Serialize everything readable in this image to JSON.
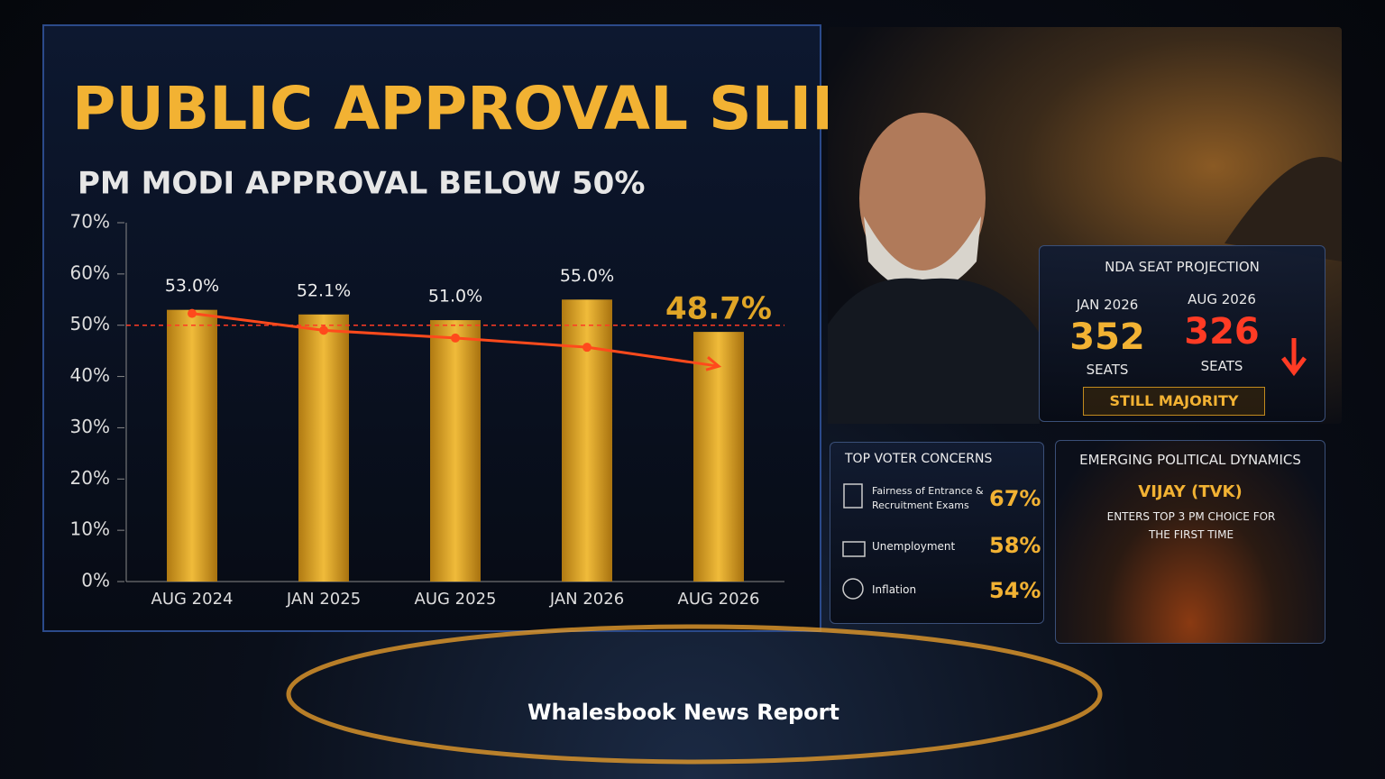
{
  "chart_data": {
    "type": "bar",
    "title": "PUBLIC APPROVAL SLIPS",
    "subtitle": "PM MODI APPROVAL BELOW 50%",
    "categories": [
      "AUG 2024",
      "JAN 2025",
      "AUG 2025",
      "JAN 2026",
      "AUG 2026"
    ],
    "series": [
      {
        "color": "#e0a526",
        "values": [
          53.0,
          52.1,
          51.0,
          55.0,
          48.7
        ],
        "value_labels": [
          "53.0%",
          "52.1%",
          "51.0%",
          "55.0%",
          "48.7%"
        ]
      }
    ],
    "trend": {
      "color": "#ff4a1c",
      "values": [
        52.3,
        49.0,
        47.5,
        45.7,
        42.0
      ]
    },
    "reference_value": 50,
    "ylim": [
      0,
      70
    ],
    "yticks": [
      {
        "value": 0,
        "label": "0%"
      },
      {
        "value": 10,
        "label": "10%"
      },
      {
        "value": 20,
        "label": "20%"
      },
      {
        "value": 30,
        "label": "30%"
      },
      {
        "value": 40,
        "label": "40%"
      },
      {
        "value": 50,
        "label": "50%"
      },
      {
        "value": 60,
        "label": "60%"
      },
      {
        "value": 70,
        "label": "70%"
      }
    ]
  },
  "seat_projection": {
    "title": "NDA SEAT PROJECTION",
    "columns": [
      {
        "label": "JAN 2026",
        "value": 352,
        "unit": "SEATS"
      },
      {
        "label": "AUG 2026",
        "value": 326,
        "unit": "SEATS"
      }
    ],
    "badge": "STILL MAJORITY"
  },
  "concerns": {
    "title": "TOP VOTER CONCERNS",
    "items": [
      {
        "label": "Fairness of Entrance & Recruitment Exams",
        "value": "67%"
      },
      {
        "label": "Unemployment",
        "value": "58%"
      },
      {
        "label": "Inflation",
        "value": "54%"
      }
    ]
  },
  "dynamics": {
    "title": "EMERGING POLITICAL DYNAMICS",
    "name": "VIJAY (TVK)",
    "text": "ENTERS TOP 3 PM CHOICE FOR THE FIRST TIME"
  },
  "footer": "Whalesbook News Report"
}
